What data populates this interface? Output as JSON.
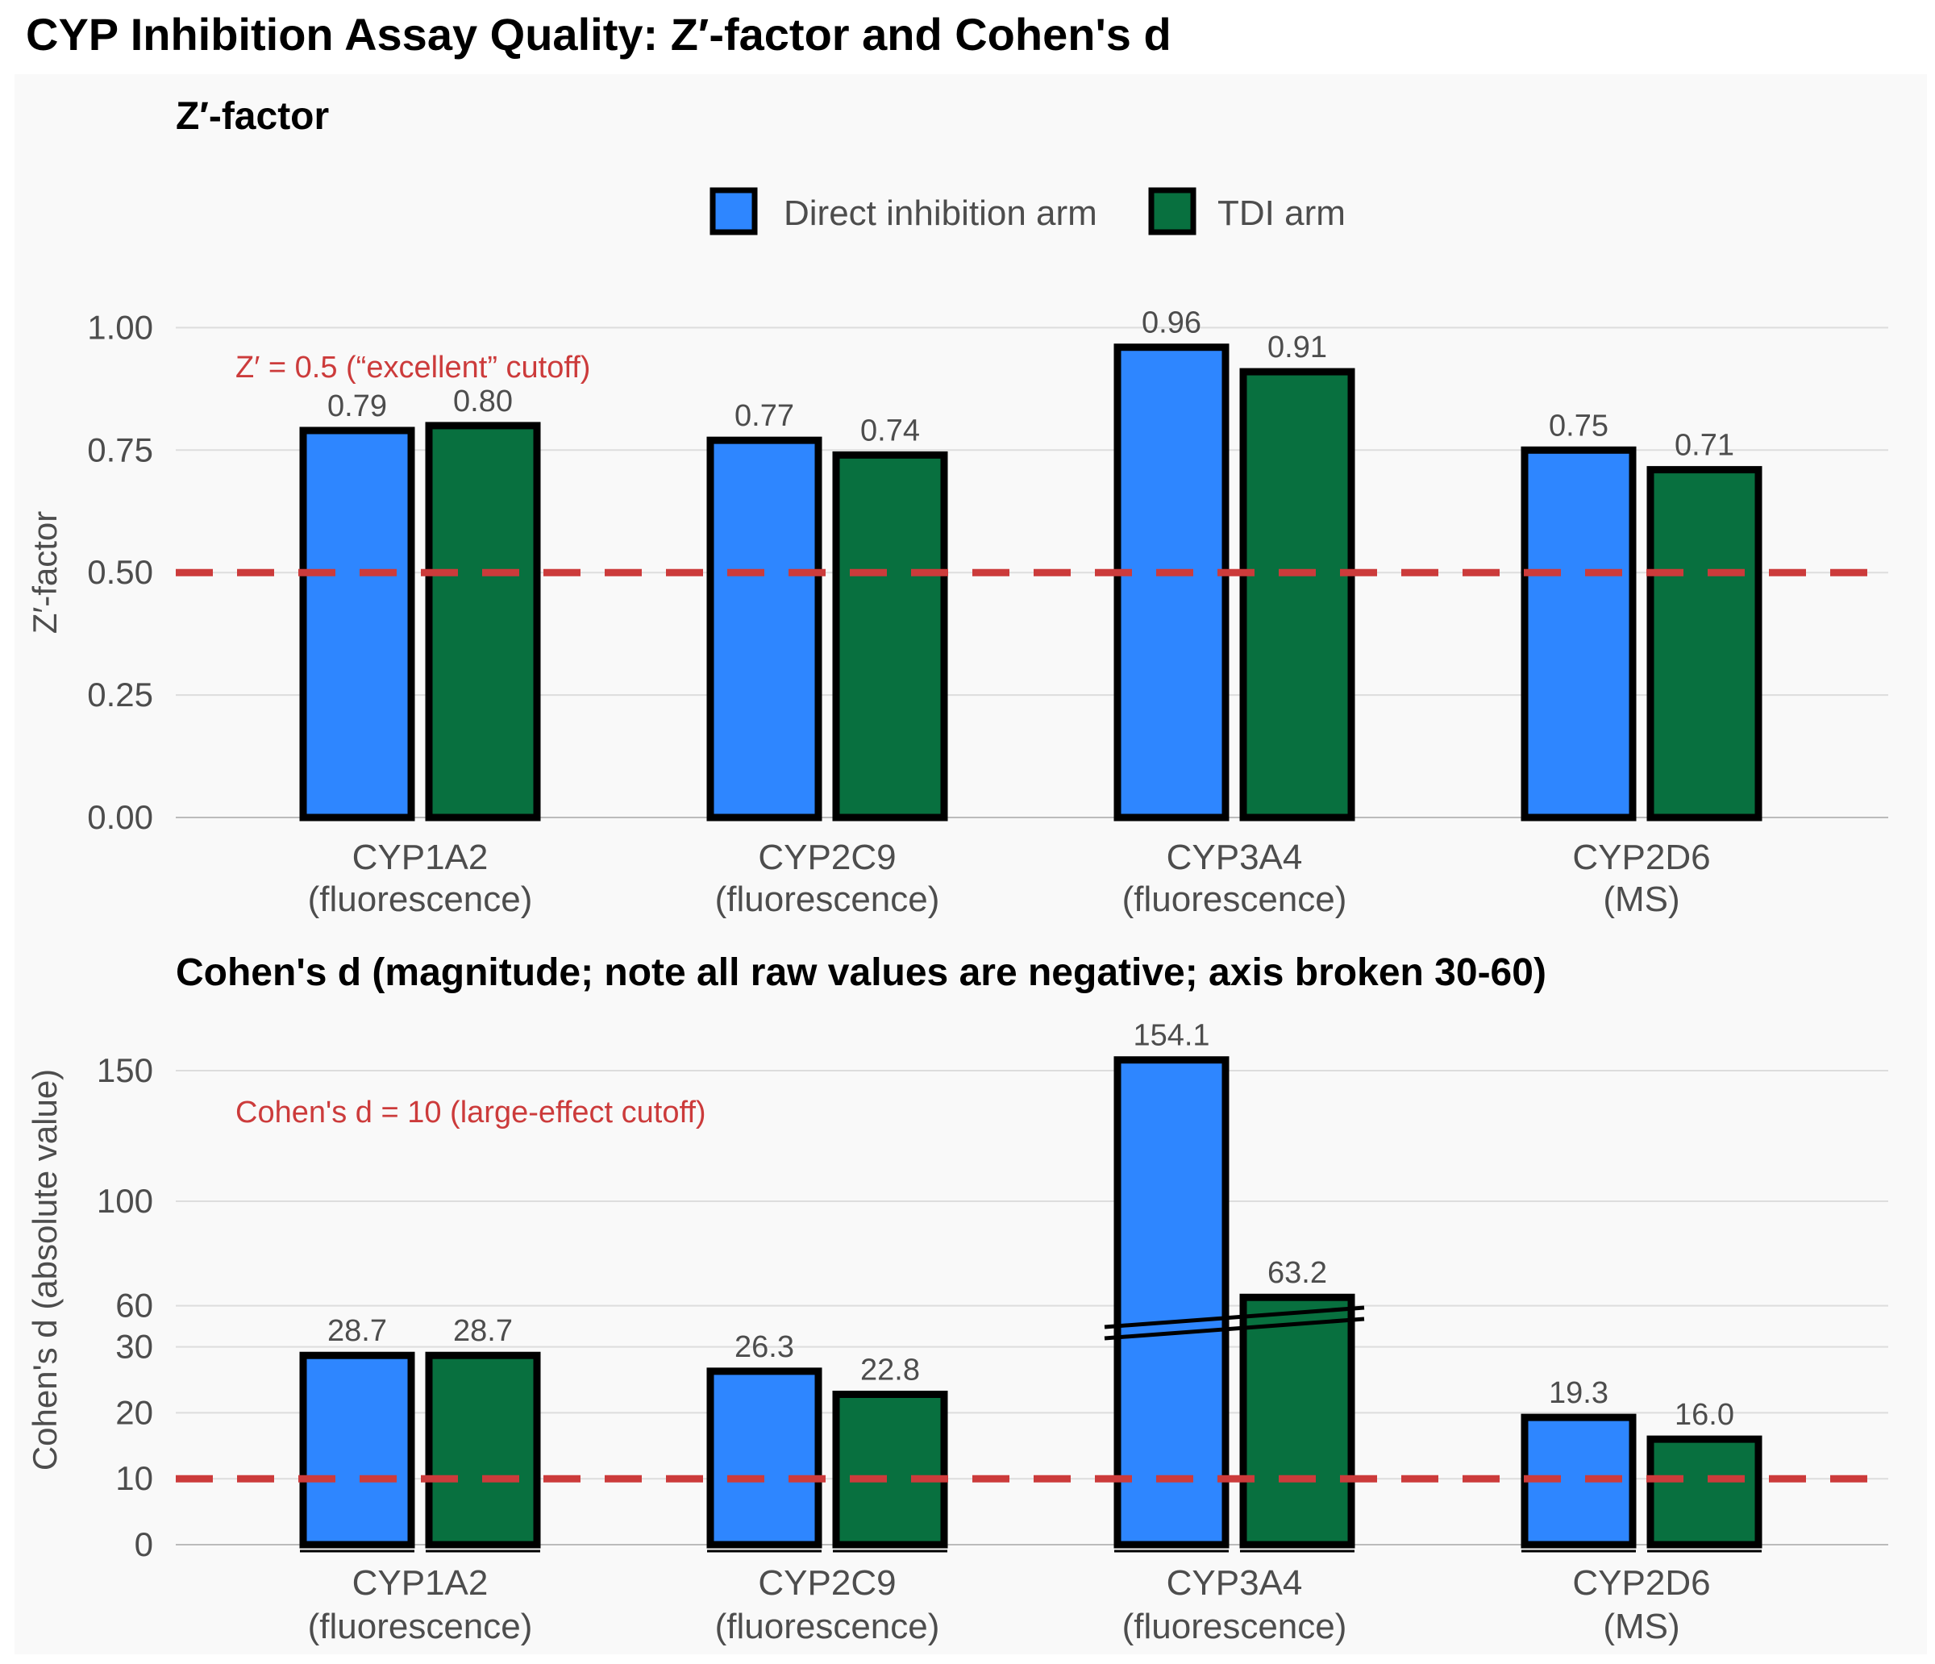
{
  "figure": {
    "title": "CYP Inhibition Assay Quality: Z′-factor and Cohen's d"
  },
  "legend": [
    {
      "label": "Direct inhibition arm",
      "color": "#2E86FF"
    },
    {
      "label": "TDI arm",
      "color": "#08703F"
    }
  ],
  "chart_data": [
    {
      "type": "bar",
      "title": "Z′-factor",
      "ylabel": "Z′-factor",
      "xlabel": "",
      "ylim": [
        0,
        1.0
      ],
      "yticks": [
        "0.00",
        "0.25",
        "0.50",
        "0.75",
        "1.00"
      ],
      "categories": [
        [
          "CYP1A2",
          "(fluorescence)"
        ],
        [
          "CYP2C9",
          "(fluorescence)"
        ],
        [
          "CYP3A4",
          "(fluorescence)"
        ],
        [
          "CYP2D6",
          "(MS)"
        ]
      ],
      "series": [
        {
          "name": "Direct inhibition arm",
          "color": "#2E86FF",
          "values": [
            0.79,
            0.77,
            0.96,
            0.75
          ],
          "labels": [
            "0.79",
            "0.77",
            "0.96",
            "0.75"
          ]
        },
        {
          "name": "TDI arm",
          "color": "#08703F",
          "values": [
            0.8,
            0.74,
            0.91,
            0.71
          ],
          "labels": [
            "0.80",
            "0.74",
            "0.91",
            "0.71"
          ]
        }
      ],
      "reference_line": {
        "value": 0.5,
        "label": "Z′ = 0.5 (“excellent” cutoff)",
        "color": "#CC3B3B",
        "style": "dashed"
      },
      "grid": true
    },
    {
      "type": "bar",
      "title": "Cohen's d (magnitude; note all raw values are negative; axis broken 30-60)",
      "ylabel": "Cohen's d (absolute value)",
      "xlabel": "",
      "axis_break": [
        30,
        60
      ],
      "ylim": [
        0,
        165
      ],
      "yticks": [
        "0",
        "10",
        "20",
        "30",
        "60",
        "100",
        "150"
      ],
      "categories": [
        [
          "CYP1A2",
          "(fluorescence)"
        ],
        [
          "CYP2C9",
          "(fluorescence)"
        ],
        [
          "CYP3A4",
          "(fluorescence)"
        ],
        [
          "CYP2D6",
          "(MS)"
        ]
      ],
      "series": [
        {
          "name": "Direct inhibition arm",
          "color": "#2E86FF",
          "values": [
            28.7,
            26.3,
            154.1,
            19.3
          ],
          "labels": [
            "28.7",
            "26.3",
            "154.1",
            "19.3"
          ]
        },
        {
          "name": "TDI arm",
          "color": "#08703F",
          "values": [
            28.7,
            22.8,
            63.2,
            16.0
          ],
          "labels": [
            "28.7",
            "22.8",
            "63.2",
            "16.0"
          ]
        }
      ],
      "reference_line": {
        "value": 10,
        "label": "Cohen's d = 10 (large-effect cutoff)",
        "color": "#CC3B3B",
        "style": "dashed"
      },
      "grid": true
    }
  ]
}
